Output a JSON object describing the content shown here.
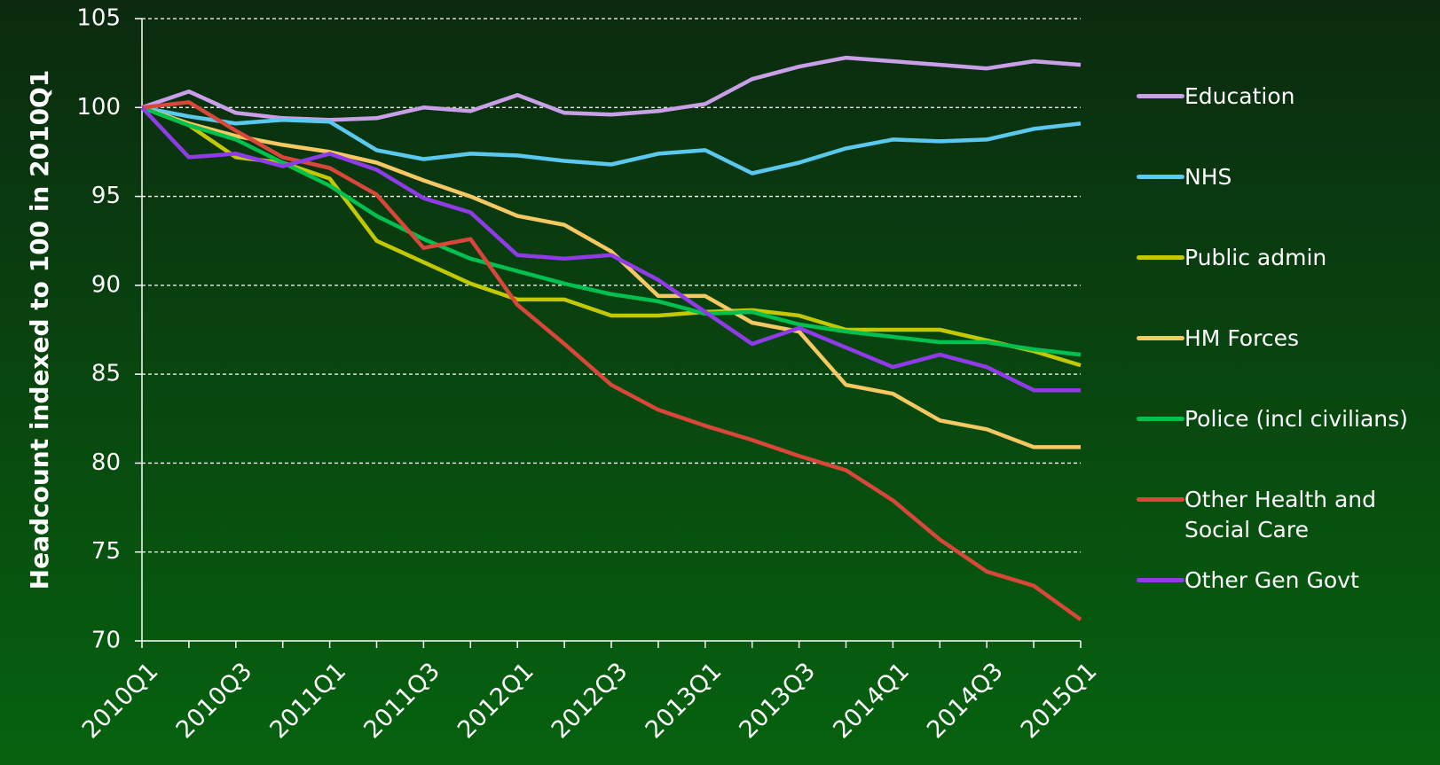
{
  "chart_data": {
    "type": "line",
    "y_label": "Headcount indexed to 100 in 2010Q1",
    "categories": [
      "2010Q1",
      null,
      "2010Q3",
      null,
      "2011Q1",
      null,
      "2011Q3",
      null,
      "2012Q1",
      null,
      "2012Q3",
      null,
      "2013Q1",
      null,
      "2013Q3",
      null,
      "2014Q1",
      null,
      "2014Q3",
      null,
      "2015Q1"
    ],
    "ylim": [
      70,
      105
    ],
    "yticks": [
      70,
      75,
      80,
      85,
      90,
      95,
      100,
      105
    ],
    "grid": true,
    "legend": "right",
    "series": [
      {
        "name": "Education",
        "color": "#c9a0e8",
        "values": [
          100,
          100.9,
          99.7,
          99.4,
          99.3,
          99.4,
          100,
          99.8,
          100.7,
          99.7,
          99.6,
          99.8,
          100.2,
          101.6,
          102.3,
          102.8,
          102.6,
          102.4,
          102.2,
          102.6,
          102.4
        ]
      },
      {
        "name": "NHS",
        "color": "#5bc8f0",
        "values": [
          100,
          99.5,
          99.1,
          99.3,
          99.2,
          97.6,
          97.1,
          97.4,
          97.3,
          97.0,
          96.8,
          97.4,
          97.6,
          96.3,
          96.9,
          97.7,
          98.2,
          98.1,
          98.2,
          98.8,
          99.1
        ]
      },
      {
        "name": "Public admin",
        "color": "#c3c800",
        "values": [
          100,
          99.0,
          97.2,
          96.9,
          96.0,
          92.5,
          91.3,
          90.1,
          89.2,
          89.2,
          88.3,
          88.3,
          88.5,
          88.6,
          88.3,
          87.5,
          87.5,
          87.5,
          86.9,
          86.3,
          85.5
        ]
      },
      {
        "name": "HM Forces",
        "color": "#f5c862",
        "values": [
          100,
          99.1,
          98.4,
          97.9,
          97.5,
          96.9,
          95.9,
          95.0,
          93.9,
          93.4,
          91.9,
          89.4,
          89.4,
          87.9,
          87.4,
          84.4,
          83.9,
          82.4,
          81.9,
          80.9,
          80.9
        ]
      },
      {
        "name": "Police (incl civilians)",
        "color": "#00c050",
        "values": [
          100,
          99.0,
          98.2,
          96.9,
          95.6,
          93.9,
          92.6,
          91.5,
          90.8,
          90.1,
          89.5,
          89.1,
          88.4,
          88.5,
          87.8,
          87.4,
          87.1,
          86.8,
          86.8,
          86.4,
          86.1
        ]
      },
      {
        "name": "Other Health and Social Care",
        "color": "#d9473a",
        "values": [
          100,
          100.3,
          98.7,
          97.2,
          96.6,
          95.1,
          92.1,
          92.6,
          88.9,
          86.7,
          84.4,
          83.0,
          82.1,
          81.3,
          80.4,
          79.6,
          77.9,
          75.7,
          73.9,
          73.1,
          71.2
        ]
      },
      {
        "name": "Other Gen Govt",
        "color": "#8f3ce8",
        "values": [
          100,
          97.2,
          97.4,
          96.7,
          97.4,
          96.5,
          94.9,
          94.1,
          91.7,
          91.5,
          91.7,
          90.3,
          88.5,
          86.7,
          87.6,
          86.5,
          85.4,
          86.1,
          85.4,
          84.1,
          84.1
        ]
      }
    ]
  }
}
